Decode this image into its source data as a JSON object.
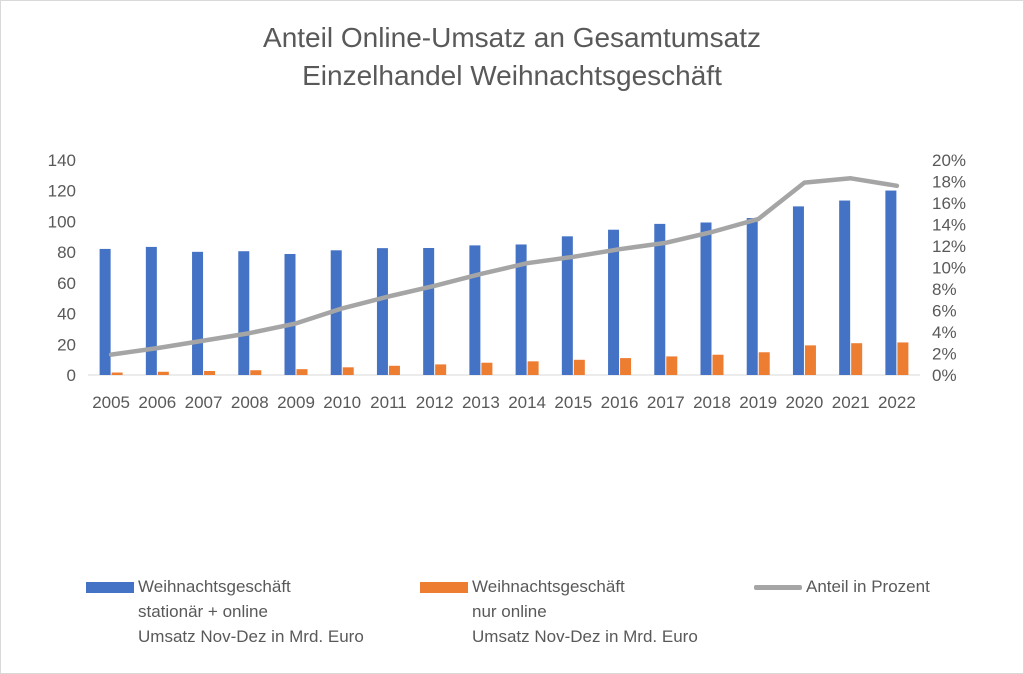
{
  "chart_data": {
    "type": "bar",
    "title_line1": "Anteil Online-Umsatz an Gesamtumsatz",
    "title_line2": "Einzelhandel Weihnachtsgeschäft",
    "categories": [
      "2005",
      "2006",
      "2007",
      "2008",
      "2009",
      "2010",
      "2011",
      "2012",
      "2013",
      "2014",
      "2015",
      "2016",
      "2017",
      "2018",
      "2019",
      "2020",
      "2021",
      "2022"
    ],
    "series": [
      {
        "name": "Weihnachtsgeschäft stationär + online Umsatz Nov-Dez in Mrd. Euro",
        "legend_lines": [
          "Weihnachtsgeschäft",
          "stationär + online",
          "Umsatz Nov-Dez in Mrd. Euro"
        ],
        "axis": "left",
        "kind": "bar",
        "color": "#4472c4",
        "values": [
          82.1,
          83.4,
          80.2,
          80.6,
          78.8,
          81.2,
          82.6,
          82.7,
          84.4,
          85.0,
          90.3,
          94.6,
          98.4,
          99.3,
          102.2,
          109.8,
          113.6,
          120.1
        ]
      },
      {
        "name": "Weihnachtsgeschäft nur online Umsatz Nov-Dez in Mrd. Euro",
        "legend_lines": [
          "Weihnachtsgeschäft",
          "nur online",
          "Umsatz Nov-Dez in Mrd. Euro"
        ],
        "axis": "left",
        "kind": "bar",
        "color": "#ed7d31",
        "values": [
          1.6,
          2.1,
          2.6,
          3.1,
          3.8,
          5.0,
          6.0,
          6.9,
          8.0,
          8.9,
          9.9,
          11.0,
          12.1,
          13.2,
          14.8,
          19.3,
          20.7,
          21.2
        ]
      },
      {
        "name": "Anteil in Prozent",
        "legend_lines": [
          "Anteil in Prozent"
        ],
        "axis": "right",
        "kind": "line",
        "color": "#a5a5a5",
        "values": [
          1.9,
          2.5,
          3.2,
          3.9,
          4.8,
          6.2,
          7.3,
          8.3,
          9.4,
          10.4,
          11.0,
          11.7,
          12.3,
          13.3,
          14.5,
          17.9,
          18.3,
          17.6
        ]
      }
    ],
    "y_left": {
      "min": 0,
      "max": 140,
      "step": 20,
      "ticks": [
        "0",
        "20",
        "40",
        "60",
        "80",
        "100",
        "120",
        "140"
      ]
    },
    "y_right": {
      "min": 0,
      "max": 20,
      "step": 2,
      "ticks": [
        "0%",
        "2%",
        "4%",
        "6%",
        "8%",
        "10%",
        "12%",
        "14%",
        "16%",
        "18%",
        "20%"
      ]
    },
    "grid": false,
    "legend_position": "bottom"
  }
}
